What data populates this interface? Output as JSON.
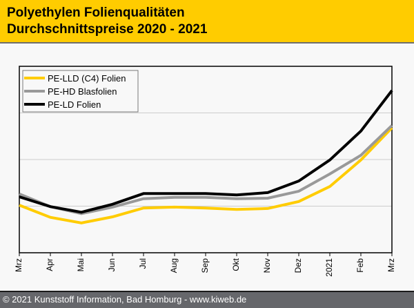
{
  "header": {
    "title_line1": "Polyethylen Folienqualitäten",
    "title_line2": "Durchschnittspreise 2020 - 2021",
    "background": "#ffcc00"
  },
  "footer": {
    "text": "© 2021 Kunststoff Information, Bad Homburg - www.kiweb.de",
    "background": "#66676b"
  },
  "chart_data": {
    "type": "line",
    "title": "Polyethylen Folienqualitäten Durchschnittspreise 2020 - 2021",
    "xlabel": "",
    "ylabel": "",
    "x": [
      "Mrz",
      "Apr",
      "Mai",
      "Jun",
      "Jul",
      "Aug",
      "Sep",
      "Okt",
      "Nov",
      "Dez",
      "2021",
      "Feb",
      "Mrz"
    ],
    "y_note": "No y-axis labels shown; values are relative index in gridline units",
    "ylim": [
      0,
      4
    ],
    "grid": true,
    "gridlines_y": [
      1,
      2,
      3
    ],
    "legend_position": "top-left",
    "series": [
      {
        "name": "PE-LLD (C4) Folien",
        "color": "#ffcc00",
        "values": [
          1.02,
          0.76,
          0.64,
          0.77,
          0.96,
          0.98,
          0.96,
          0.93,
          0.95,
          1.1,
          1.42,
          1.99,
          2.68
        ]
      },
      {
        "name": "PE-HD Blasfolien",
        "color": "#999999",
        "values": [
          1.26,
          0.99,
          0.84,
          0.98,
          1.16,
          1.19,
          1.19,
          1.16,
          1.17,
          1.32,
          1.69,
          2.09,
          2.73
        ]
      },
      {
        "name": "PE-LD Folien",
        "color": "#000000",
        "values": [
          1.2,
          0.99,
          0.87,
          1.04,
          1.27,
          1.27,
          1.27,
          1.24,
          1.29,
          1.54,
          1.99,
          2.61,
          3.48
        ]
      }
    ]
  }
}
